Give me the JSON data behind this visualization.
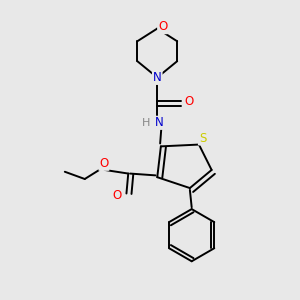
{
  "background_color": "#e8e8e8",
  "bond_color": "#000000",
  "atom_colors": {
    "O": "#ff0000",
    "N": "#0000cc",
    "S": "#cccc00",
    "H": "#888888",
    "C": "#000000"
  },
  "font_size": 8.5,
  "fig_size": [
    3.0,
    3.0
  ],
  "dpi": 100
}
